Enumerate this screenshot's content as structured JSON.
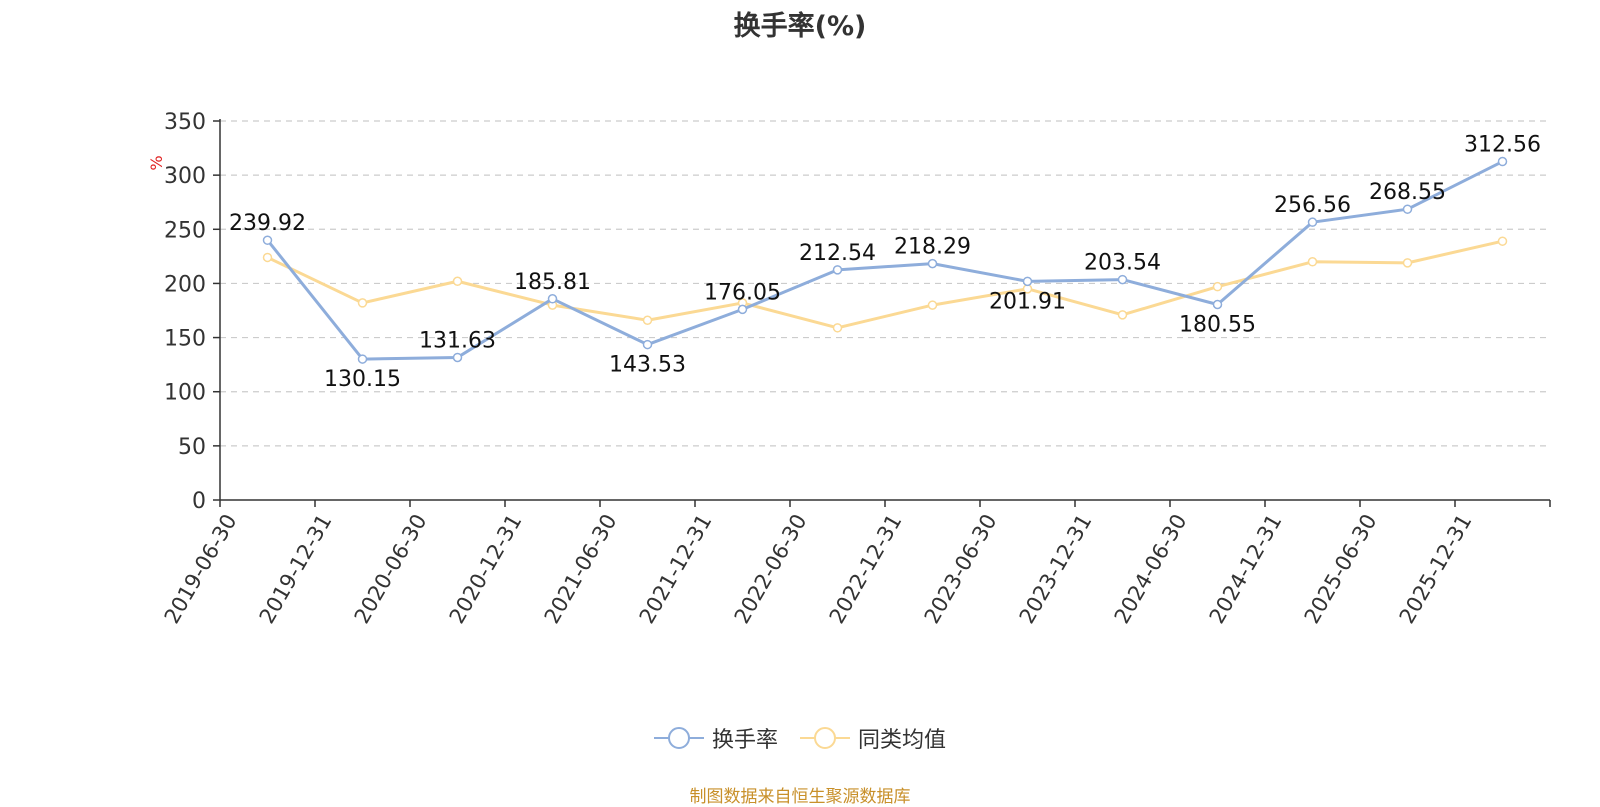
{
  "chart_data": {
    "type": "line",
    "title": "换手率(%)",
    "ylabel": "%",
    "ylim": [
      0,
      350
    ],
    "yticks": [
      0,
      50,
      100,
      150,
      200,
      250,
      300,
      350
    ],
    "grid": true,
    "legend_position": "bottom",
    "categories": [
      "2019-06-30",
      "2019-12-31",
      "2020-06-30",
      "2020-12-31",
      "2021-06-30",
      "2021-12-31",
      "2022-06-30",
      "2022-12-31",
      "2023-06-30",
      "2023-12-31",
      "2024-06-30",
      "2024-12-31",
      "2025-06-30",
      "2025-12-31"
    ],
    "series": [
      {
        "name": "换手率",
        "color": "#8eaddb",
        "show_labels": true,
        "values": [
          239.92,
          130.15,
          131.63,
          185.81,
          143.53,
          176.05,
          212.54,
          218.29,
          201.91,
          203.54,
          180.55,
          256.56,
          268.55,
          312.56
        ]
      },
      {
        "name": "同类均值",
        "color": "#fbd994",
        "show_labels": false,
        "values": [
          224,
          182,
          202,
          180,
          166,
          182,
          159,
          180,
          195,
          171,
          197,
          220,
          219,
          239
        ]
      }
    ]
  },
  "source": "制图数据来自恒生聚源数据库"
}
